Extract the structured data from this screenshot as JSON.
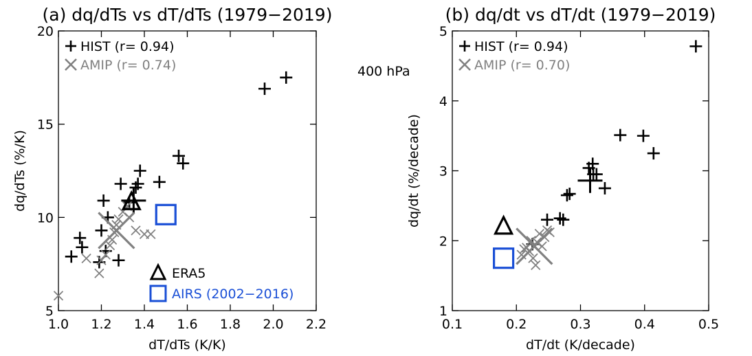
{
  "level_label": "400 hPa",
  "colors": {
    "hist": "#000000",
    "amip": "#808080",
    "era5": "#000000",
    "airs": "#1a4fd6"
  },
  "chart_data": [
    {
      "type": "scatter",
      "title": "(a) dq/dTs vs dT/dTs (1979−2019)",
      "xlabel": "dT/dTs (K/K)",
      "ylabel": "dq/dTs (%/K)",
      "xlim": [
        1.0,
        2.2
      ],
      "ylim": [
        5,
        20
      ],
      "xticks": [
        "1.0",
        "1.2",
        "1.4",
        "1.6",
        "1.8",
        "2.0",
        "2.2"
      ],
      "xtick_values": [
        1.0,
        1.2,
        1.4,
        1.6,
        1.8,
        2.0,
        2.2
      ],
      "yticks": [
        "5",
        "10",
        "15",
        "20"
      ],
      "ytick_values": [
        5,
        10,
        15,
        20
      ],
      "legend": [
        {
          "marker": "plus",
          "label": "HIST (r= 0.94)"
        },
        {
          "marker": "x",
          "label": "AMIP (r= 0.74)"
        }
      ],
      "legend2": [
        {
          "marker": "triangle",
          "label": "ERA5"
        },
        {
          "marker": "square",
          "label": "AIRS (2002−2016)"
        }
      ],
      "series": [
        {
          "marker": "plus",
          "values": [
            [
              1.06,
              7.9
            ],
            [
              1.1,
              8.9
            ],
            [
              1.11,
              8.4
            ],
            [
              1.19,
              7.6
            ],
            [
              1.2,
              9.3
            ],
            [
              1.22,
              8.2
            ],
            [
              1.21,
              10.9
            ],
            [
              1.23,
              10.0
            ],
            [
              1.28,
              7.7
            ],
            [
              1.29,
              11.8
            ],
            [
              1.33,
              10.8
            ],
            [
              1.36,
              11.6
            ],
            [
              1.37,
              11.8
            ],
            [
              1.38,
              12.5
            ],
            [
              1.47,
              11.9
            ],
            [
              1.56,
              13.3
            ],
            [
              1.58,
              12.9
            ],
            [
              1.96,
              16.9
            ],
            [
              2.06,
              17.5
            ]
          ]
        },
        {
          "marker": "x",
          "values": [
            [
              1.0,
              5.8
            ],
            [
              1.13,
              7.8
            ],
            [
              1.19,
              7.0
            ],
            [
              1.2,
              7.7
            ],
            [
              1.22,
              8.0
            ],
            [
              1.24,
              8.5
            ],
            [
              1.25,
              8.8
            ],
            [
              1.26,
              9.2
            ],
            [
              1.27,
              9.6
            ],
            [
              1.28,
              9.9
            ],
            [
              1.3,
              10.3
            ],
            [
              1.32,
              10.6
            ],
            [
              1.33,
              10.0
            ],
            [
              1.36,
              9.3
            ],
            [
              1.4,
              9.1
            ],
            [
              1.43,
              9.1
            ]
          ]
        },
        {
          "marker": "plus-large",
          "values": [
            [
              1.35,
              10.9
            ]
          ]
        },
        {
          "marker": "x-large",
          "values": [
            [
              1.27,
              9.3
            ]
          ]
        },
        {
          "marker": "triangle",
          "values": [
            [
              1.34,
              10.85
            ]
          ]
        },
        {
          "marker": "square",
          "values": [
            [
              1.5,
              10.15
            ]
          ]
        }
      ]
    },
    {
      "type": "scatter",
      "title": "(b) dq/dt vs dT/dt (1979−2019)",
      "xlabel": "dT/dt (K/decade)",
      "ylabel": "dq/dt (%/decade)",
      "xlim": [
        0.1,
        0.5
      ],
      "ylim": [
        1,
        5
      ],
      "xticks": [
        "0.1",
        "0.2",
        "0.3",
        "0.4",
        "0.5"
      ],
      "xtick_values": [
        0.1,
        0.2,
        0.3,
        0.4,
        0.5
      ],
      "yticks": [
        "1",
        "2",
        "3",
        "4",
        "5"
      ],
      "ytick_values": [
        1,
        2,
        3,
        4,
        5
      ],
      "legend": [
        {
          "marker": "plus",
          "label": "HIST (r= 0.94)"
        },
        {
          "marker": "x",
          "label": "AMIP (r= 0.70)"
        }
      ],
      "series": [
        {
          "marker": "plus",
          "values": [
            [
              0.225,
              1.95
            ],
            [
              0.248,
              2.3
            ],
            [
              0.268,
              2.32
            ],
            [
              0.273,
              2.3
            ],
            [
              0.279,
              2.65
            ],
            [
              0.283,
              2.67
            ],
            [
              0.313,
              3.04
            ],
            [
              0.319,
              3.1
            ],
            [
              0.32,
              2.95
            ],
            [
              0.325,
              2.95
            ],
            [
              0.338,
              2.75
            ],
            [
              0.362,
              3.51
            ],
            [
              0.398,
              3.5
            ],
            [
              0.414,
              3.25
            ],
            [
              0.48,
              4.78
            ]
          ]
        },
        {
          "marker": "x",
          "values": [
            [
              0.208,
              1.8
            ],
            [
              0.212,
              1.88
            ],
            [
              0.216,
              1.9
            ],
            [
              0.22,
              1.85
            ],
            [
              0.223,
              2.0
            ],
            [
              0.226,
              1.75
            ],
            [
              0.23,
              1.65
            ],
            [
              0.232,
              1.98
            ],
            [
              0.236,
              2.1
            ],
            [
              0.24,
              1.92
            ],
            [
              0.244,
              2.05
            ],
            [
              0.248,
              2.15
            ],
            [
              0.252,
              2.12
            ]
          ]
        },
        {
          "marker": "plus-large",
          "values": [
            [
              0.315,
              2.86
            ]
          ]
        },
        {
          "marker": "x-large",
          "values": [
            [
              0.228,
              1.92
            ]
          ]
        },
        {
          "marker": "triangle",
          "values": [
            [
              0.18,
              2.21
            ]
          ]
        },
        {
          "marker": "square",
          "values": [
            [
              0.18,
              1.75
            ]
          ]
        }
      ]
    }
  ]
}
